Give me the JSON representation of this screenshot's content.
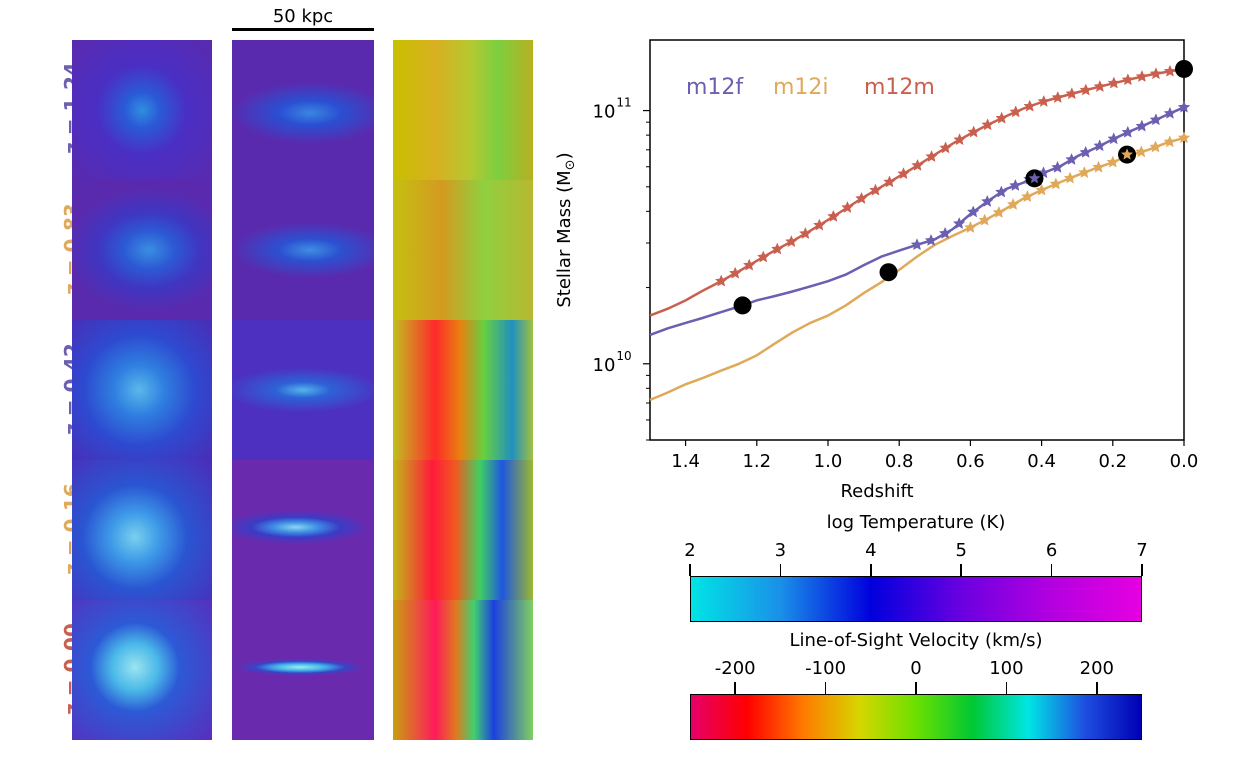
{
  "scale_bar": {
    "label": "50 kpc"
  },
  "rows": [
    {
      "redshift": "z = 1.24",
      "galaxy": "m12f",
      "color": "#6a5fb0"
    },
    {
      "redshift": "z = 0.83",
      "galaxy": "m12i",
      "color": "#e0a95a"
    },
    {
      "redshift": "z = 0.42",
      "galaxy": "m12f",
      "color": "#6a5fb0"
    },
    {
      "redshift": "z = 0.16",
      "galaxy": "m12i",
      "color": "#e0a95a"
    },
    {
      "redshift": "z = 0.00",
      "galaxy": "m12m",
      "color": "#c9604f"
    }
  ],
  "chart_data": {
    "type": "line",
    "xlabel": "Redshift",
    "ylabel": "Stellar Mass (M",
    "ylabel_sub": "⊙",
    "ylabel_end": ")",
    "xlim": [
      1.5,
      0.0
    ],
    "ylim": [
      5000000000.0,
      190000000000.0
    ],
    "yscale": "log",
    "xticks": [
      1.4,
      1.2,
      1.0,
      0.8,
      0.6,
      0.4,
      0.2,
      0.0
    ],
    "xtick_labels": [
      "1.4",
      "1.2",
      "1.0",
      "0.8",
      "0.6",
      "0.4",
      "0.2",
      "0.0"
    ],
    "yticks": [
      {
        "value": 10000000000.0,
        "base": "10",
        "exp": "10"
      },
      {
        "value": 100000000000.0,
        "base": "10",
        "exp": "11"
      }
    ],
    "legend": {
      "position": "top-left",
      "entries": [
        "m12f",
        "m12i",
        "m12m"
      ]
    },
    "series": [
      {
        "name": "m12f",
        "color": "#6a5fb0",
        "x": [
          1.5,
          1.45,
          1.4,
          1.35,
          1.3,
          1.24,
          1.2,
          1.15,
          1.1,
          1.05,
          1.0,
          0.95,
          0.9,
          0.85,
          0.8,
          0.75,
          0.7,
          0.65,
          0.6,
          0.55,
          0.5,
          0.45,
          0.42,
          0.35,
          0.3,
          0.25,
          0.2,
          0.15,
          0.1,
          0.05,
          0.0
        ],
        "y": [
          13000000000.0,
          13800000000.0,
          14500000000.0,
          15200000000.0,
          16000000000.0,
          17000000000.0,
          17800000000.0,
          18500000000.0,
          19300000000.0,
          20200000000.0,
          21200000000.0,
          22500000000.0,
          24500000000.0,
          26500000000.0,
          28000000000.0,
          29500000000.0,
          31000000000.0,
          34000000000.0,
          39000000000.0,
          44000000000.0,
          49000000000.0,
          52000000000.0,
          55000000000.0,
          60000000000.0,
          66000000000.0,
          71000000000.0,
          77000000000.0,
          83000000000.0,
          89000000000.0,
          96000000000.0,
          103000000000.0
        ]
      },
      {
        "name": "m12i",
        "color": "#e0a95a",
        "x": [
          1.5,
          1.45,
          1.4,
          1.35,
          1.3,
          1.25,
          1.2,
          1.15,
          1.1,
          1.05,
          1.0,
          0.95,
          0.9,
          0.85,
          0.83,
          0.8,
          0.75,
          0.7,
          0.65,
          0.6,
          0.55,
          0.5,
          0.45,
          0.4,
          0.35,
          0.3,
          0.25,
          0.2,
          0.16,
          0.1,
          0.05,
          0.0
        ],
        "y": [
          7200000000.0,
          7700000000.0,
          8300000000.0,
          8800000000.0,
          9400000000.0,
          10000000000.0,
          10800000000.0,
          12000000000.0,
          13300000000.0,
          14500000000.0,
          15500000000.0,
          17000000000.0,
          19000000000.0,
          21000000000.0,
          22000000000.0,
          23500000000.0,
          26500000000.0,
          29500000000.0,
          32000000000.0,
          34500000000.0,
          37500000000.0,
          41000000000.0,
          45000000000.0,
          48500000000.0,
          52000000000.0,
          55500000000.0,
          59000000000.0,
          62500000000.0,
          66000000000.0,
          70000000000.0,
          74500000000.0,
          78000000000.0
        ]
      },
      {
        "name": "m12m",
        "color": "#c9604f",
        "x": [
          1.5,
          1.45,
          1.4,
          1.35,
          1.3,
          1.25,
          1.2,
          1.15,
          1.1,
          1.05,
          1.0,
          0.95,
          0.9,
          0.85,
          0.8,
          0.75,
          0.7,
          0.65,
          0.6,
          0.55,
          0.5,
          0.45,
          0.4,
          0.35,
          0.3,
          0.25,
          0.2,
          0.15,
          0.1,
          0.05,
          0.0
        ],
        "y": [
          15500000000.0,
          16500000000.0,
          17800000000.0,
          19500000000.0,
          21200000000.0,
          23200000000.0,
          25500000000.0,
          28000000000.0,
          30500000000.0,
          33500000000.0,
          37000000000.0,
          41000000000.0,
          45500000000.0,
          50000000000.0,
          55000000000.0,
          60500000000.0,
          67000000000.0,
          74000000000.0,
          81000000000.0,
          88000000000.0,
          95000000000.0,
          102000000000.0,
          108000000000.0,
          113000000000.0,
          118000000000.0,
          123000000000.0,
          128000000000.0,
          133000000000.0,
          138000000000.0,
          142000000000.0,
          146000000000.0
        ]
      }
    ],
    "markers": [
      {
        "series": "m12f",
        "x": 1.24,
        "y": 17000000000.0,
        "style": "circle"
      },
      {
        "series": "m12i",
        "x": 0.83,
        "y": 23000000000.0,
        "style": "circle"
      },
      {
        "series": "m12f",
        "x": 0.42,
        "y": 54000000000.0,
        "style": "circle-star"
      },
      {
        "series": "m12i",
        "x": 0.16,
        "y": 67000000000.0,
        "style": "circle-star"
      },
      {
        "series": "m12m",
        "x": 0.0,
        "y": 146000000000.0,
        "style": "circle"
      }
    ],
    "star_ranges": [
      {
        "series": "m12m",
        "from": 1.3,
        "to": 0.0
      },
      {
        "series": "m12f",
        "from": 0.75,
        "to": 0.0
      },
      {
        "series": "m12i",
        "from": 0.6,
        "to": 0.0
      }
    ]
  },
  "colorbars": [
    {
      "title": "log Temperature (K)",
      "ticks": [
        "2",
        "3",
        "4",
        "5",
        "6",
        "7"
      ],
      "range": [
        2,
        7
      ],
      "stops": [
        "#00e5e5",
        "#1a8fe8",
        "#0000dd",
        "#6a00e0",
        "#b300e0",
        "#e600e0"
      ]
    },
    {
      "title": "Line-of-Sight Velocity (km/s)",
      "ticks": [
        "-200",
        "-100",
        "0",
        "100",
        "200"
      ],
      "tick_values": [
        -200,
        -100,
        0,
        100,
        200
      ],
      "range": [
        -250,
        250
      ],
      "stops": [
        "#e6006a",
        "#ff0000",
        "#ff7a00",
        "#d6d600",
        "#6be000",
        "#00c832",
        "#00e5e5",
        "#1e4ee0",
        "#0000b4"
      ]
    }
  ]
}
